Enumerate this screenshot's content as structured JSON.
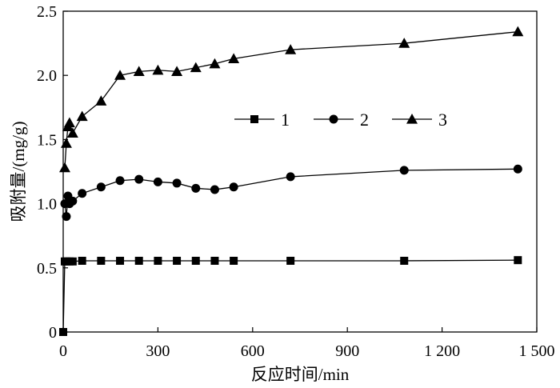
{
  "chart_data": {
    "type": "line",
    "title": "",
    "xlabel": "反应时间/min",
    "ylabel": "吸附量/(mg/g)",
    "xlim": [
      0,
      1500
    ],
    "ylim": [
      0,
      2.5
    ],
    "x_ticks": [
      0,
      300,
      600,
      900,
      1200,
      1500
    ],
    "x_tick_labels": [
      "0",
      "300",
      "600",
      "900",
      "1 200",
      "1 500"
    ],
    "y_ticks": [
      0,
      0.5,
      1.0,
      1.5,
      2.0,
      2.5
    ],
    "y_tick_labels": [
      "0",
      "0.5",
      "1.0",
      "1.5",
      "2.0",
      "2.5"
    ],
    "grid": false,
    "legend_position": "center-right",
    "series": [
      {
        "name": "1",
        "marker": "square",
        "x": [
          0,
          5,
          10,
          20,
          30,
          60,
          120,
          180,
          240,
          300,
          360,
          420,
          480,
          540,
          720,
          1080,
          1440
        ],
        "values": [
          0,
          0.55,
          0.55,
          0.55,
          0.55,
          0.555,
          0.555,
          0.555,
          0.555,
          0.555,
          0.555,
          0.555,
          0.555,
          0.555,
          0.555,
          0.555,
          0.56
        ]
      },
      {
        "name": "2",
        "marker": "circle",
        "x": [
          5,
          10,
          15,
          20,
          30,
          60,
          120,
          180,
          240,
          300,
          360,
          420,
          480,
          540,
          720,
          1080,
          1440
        ],
        "values": [
          1.0,
          0.9,
          1.06,
          1.0,
          1.02,
          1.08,
          1.13,
          1.18,
          1.19,
          1.17,
          1.16,
          1.12,
          1.11,
          1.13,
          1.21,
          1.26,
          1.27
        ]
      },
      {
        "name": "3",
        "marker": "triangle",
        "x": [
          5,
          10,
          15,
          20,
          30,
          60,
          120,
          180,
          240,
          300,
          360,
          420,
          480,
          540,
          720,
          1080,
          1440
        ],
        "values": [
          1.28,
          1.47,
          1.6,
          1.63,
          1.55,
          1.68,
          1.8,
          2.0,
          2.03,
          2.04,
          2.03,
          2.06,
          2.09,
          2.13,
          2.2,
          2.25,
          2.34
        ]
      }
    ]
  }
}
